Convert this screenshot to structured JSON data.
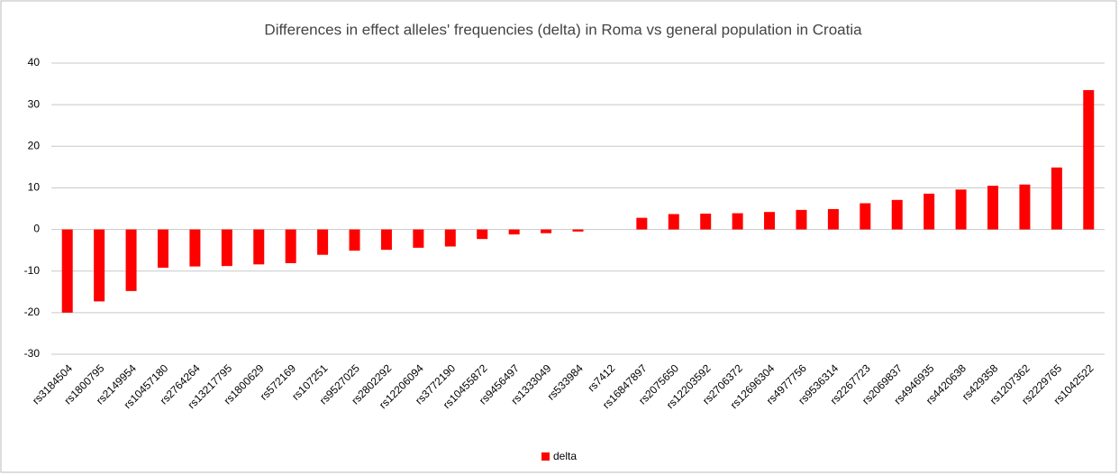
{
  "chart_data": {
    "type": "bar",
    "title": "Differences in effect alleles' frequencies (delta) in Roma vs general population in Croatia",
    "categories": [
      "rs3184504",
      "rs1800795",
      "rs2149954",
      "rs10457180",
      "rs2764264",
      "rs13217795",
      "rs1800629",
      "rs572169",
      "rs107251",
      "rs9527025",
      "rs2802292",
      "rs12206094",
      "rs3772190",
      "rs10455872",
      "rs9456497",
      "rs1333049",
      "rs533984",
      "rs7412",
      "rs16847897",
      "rs2075650",
      "rs12203592",
      "rs2706372",
      "rs12696304",
      "rs4977756",
      "rs9536314",
      "rs2267723",
      "rs2069837",
      "rs4946935",
      "rs4420638",
      "rs429358",
      "rs1207362",
      "rs2229765",
      "rs1042522"
    ],
    "series": [
      {
        "name": "delta",
        "color": "#ff0000",
        "values": [
          -20,
          -17.3,
          -14.8,
          -9.2,
          -8.9,
          -8.8,
          -8.4,
          -8.1,
          -6.1,
          -5.1,
          -4.9,
          -4.4,
          -4.1,
          -2.3,
          -1.2,
          -0.9,
          -0.5,
          0,
          2.8,
          3.7,
          3.8,
          3.9,
          4.2,
          4.7,
          4.9,
          6.3,
          7.1,
          8.6,
          9.6,
          10.5,
          10.8,
          14.9,
          33.5
        ]
      }
    ],
    "ylim": [
      -30,
      40
    ],
    "yticks": [
      -30,
      -20,
      -10,
      0,
      10,
      20,
      30,
      40
    ],
    "grid": true,
    "legend": "bottom"
  }
}
